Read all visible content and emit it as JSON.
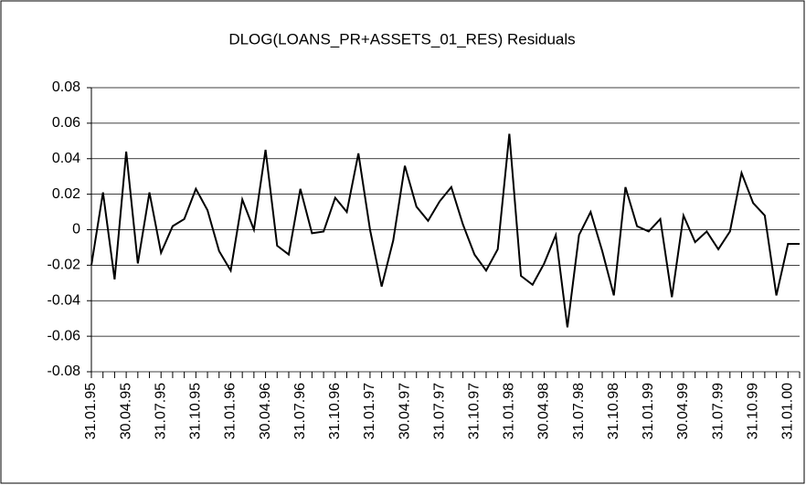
{
  "chart_data": {
    "type": "line",
    "title": "DLOG(LOANS_PR+ASSETS_01_RES) Residuals",
    "categories": [
      "31.01.95",
      null,
      null,
      "30.04.95",
      null,
      null,
      "31.07.95",
      null,
      null,
      "31.10.95",
      null,
      null,
      "31.01.96",
      null,
      null,
      "30.04.96",
      null,
      null,
      "31.07.96",
      null,
      null,
      "31.10.96",
      null,
      null,
      "31.01.97",
      null,
      null,
      "30.04.97",
      null,
      null,
      "31.07.97",
      null,
      null,
      "31.10.97",
      null,
      null,
      "31.01.98",
      null,
      null,
      "30.04.98",
      null,
      null,
      "31.07.98",
      null,
      null,
      "31.10.98",
      null,
      null,
      "31.01.99",
      null,
      null,
      "30.04.99",
      null,
      null,
      "31.07.99",
      null,
      null,
      "31.10.99",
      null,
      null,
      "31.01.00",
      null
    ],
    "values": [
      -0.02,
      0.021,
      -0.028,
      0.044,
      -0.019,
      0.021,
      -0.013,
      0.002,
      0.006,
      0.023,
      0.011,
      -0.012,
      -0.023,
      0.017,
      0.0,
      0.045,
      -0.009,
      -0.014,
      0.023,
      -0.002,
      -0.001,
      0.018,
      0.01,
      0.043,
      0.0,
      -0.032,
      -0.006,
      0.036,
      0.013,
      0.005,
      0.016,
      0.024,
      0.003,
      -0.014,
      -0.023,
      -0.011,
      0.054,
      -0.026,
      -0.031,
      -0.019,
      -0.003,
      -0.055,
      -0.003,
      0.01,
      -0.012,
      -0.037,
      0.024,
      0.002,
      -0.001,
      0.006,
      -0.038,
      0.008,
      -0.007,
      -0.001,
      -0.011,
      -0.001,
      0.032,
      0.015,
      0.008,
      -0.037,
      -0.008,
      -0.008
    ],
    "color": "#000000",
    "ylim": [
      -0.08,
      0.08
    ],
    "yticks": [
      -0.08,
      -0.06,
      -0.04,
      -0.02,
      0,
      0.02,
      0.04,
      0.06,
      0.08
    ],
    "grid": true
  }
}
